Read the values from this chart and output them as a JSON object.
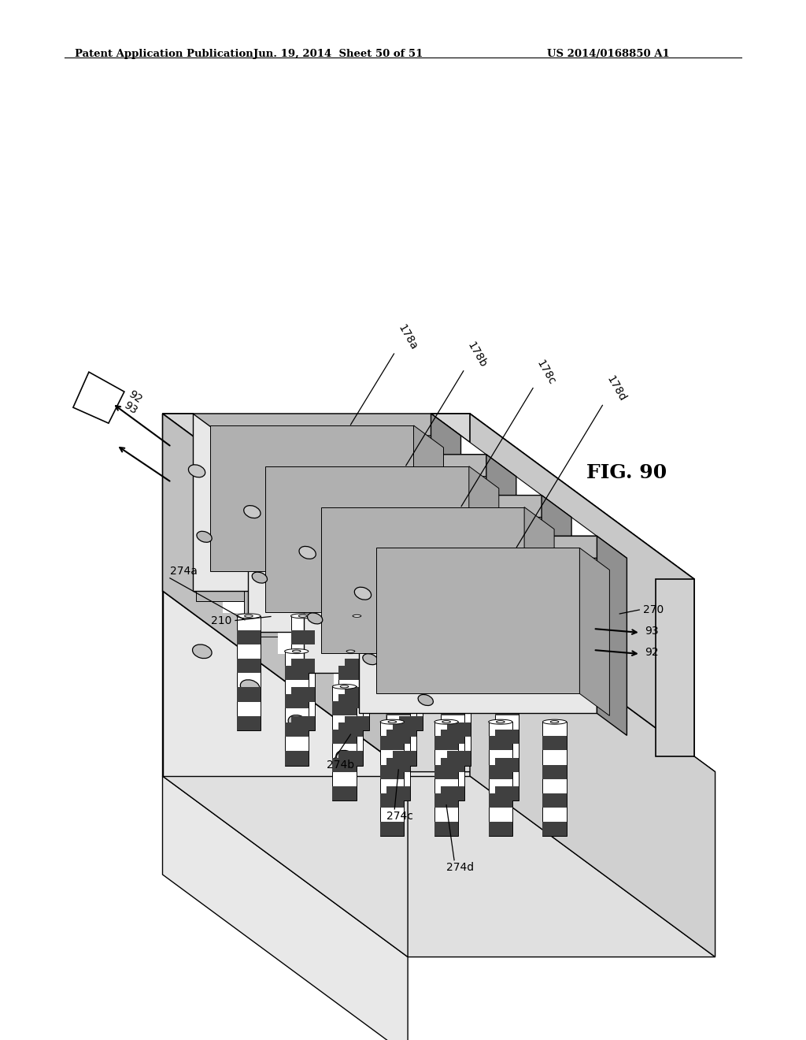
{
  "header_left": "Patent Application Publication",
  "header_center": "Jun. 19, 2014  Sheet 50 of 51",
  "header_right": "US 2014/0168850 A1",
  "fig_label": "FIG. 90",
  "bg_color": "#ffffff"
}
